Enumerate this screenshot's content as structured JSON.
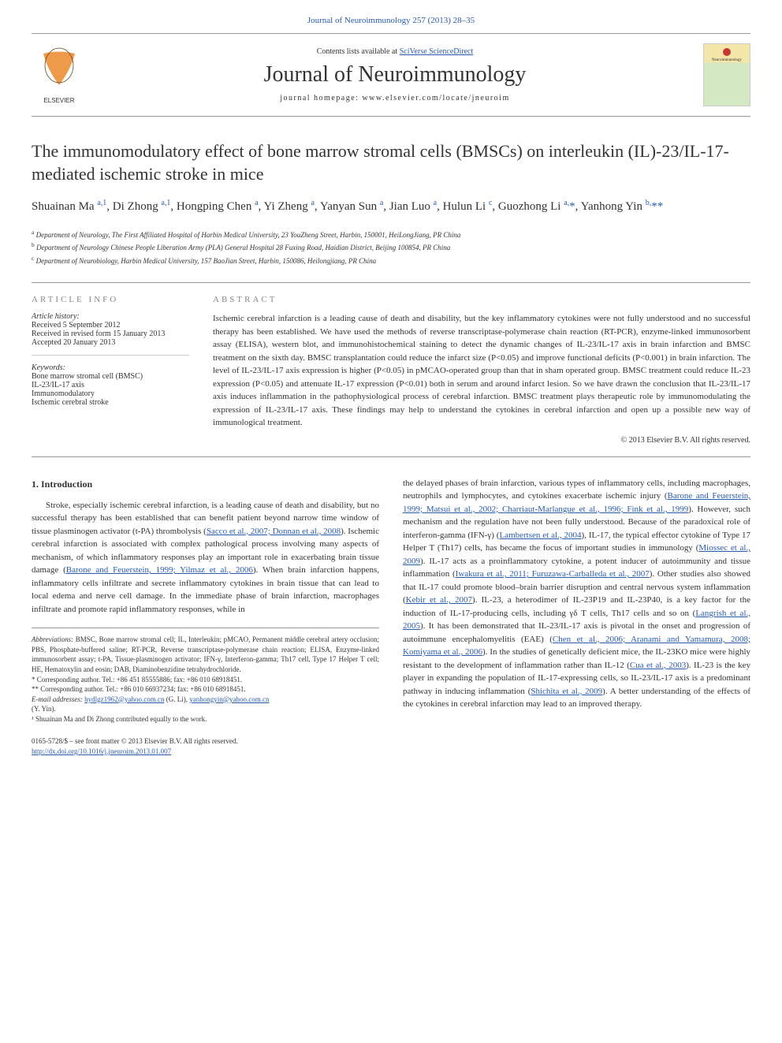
{
  "colors": {
    "link": "#2a5caa",
    "text": "#333333",
    "muted": "#888888",
    "border": "#999999",
    "background": "#ffffff"
  },
  "typography": {
    "base_family": "Georgia, Times New Roman, serif",
    "title_size": 22,
    "journal_name_size": 28,
    "body_size": 11,
    "small_size": 9
  },
  "header": {
    "journal_ref": "Journal of Neuroimmunology 257 (2013) 28–35",
    "contents_prefix": "Contents lists available at ",
    "contents_link": "SciVerse ScienceDirect",
    "journal_name": "Journal of Neuroimmunology",
    "homepage_label": "journal homepage: www.elsevier.com/locate/jneuroim",
    "publisher": "ELSEVIER",
    "cover_text": "Neuroimmunology"
  },
  "title": "The immunomodulatory effect of bone marrow stromal cells (BMSCs) on interleukin (IL)-23/IL-17-mediated ischemic stroke in mice",
  "authors_html": "Shuainan Ma <sup>a,1</sup>, Di Zhong <sup>a,1</sup>, Hongping Chen <sup>a</sup>, Yi Zheng <sup>a</sup>, Yanyan Sun <sup>a</sup>, Jian Luo <sup>a</sup>, Hulun Li <sup>c</sup>, Guozhong Li <sup>a,</sup><span class=\"asterisk\">*</span>, Yanhong Yin <sup>b,</sup><span class=\"asterisk\">**</span>",
  "affiliations": [
    {
      "sup": "a",
      "text": "Department of Neurology, The First Affiliated Hospital of Harbin Medical University, 23 YouZheng Street, Harbin, 150001, HeiLongJiang, PR China"
    },
    {
      "sup": "b",
      "text": "Department of Neurology Chinese People Liberation Army (PLA) General Hospital 28 Fuxing Road, Haidian District, Beijing 100854, PR China"
    },
    {
      "sup": "c",
      "text": "Department of Neurobiology, Harbin Medical University, 157 BaoJian Street, Harbin, 150086, Heilongjiang, PR China"
    }
  ],
  "article_info": {
    "heading": "article info",
    "history_label": "Article history:",
    "received": "Received 5 September 2012",
    "revised": "Received in revised form 15 January 2013",
    "accepted": "Accepted 20 January 2013",
    "keywords_label": "Keywords:",
    "keywords": [
      "Bone marrow stromal cell (BMSC)",
      "IL-23/IL-17 axis",
      "Immunomodulatory",
      "Ischemic cerebral stroke"
    ]
  },
  "abstract": {
    "heading": "abstract",
    "text": "Ischemic cerebral infarction is a leading cause of death and disability, but the key inflammatory cytokines were not fully understood and no successful therapy has been established. We have used the methods of reverse transcriptase-polymerase chain reaction (RT-PCR), enzyme-linked immunosorbent assay (ELISA), western blot, and immunohistochemical staining to detect the dynamic changes of IL-23/IL-17 axis in brain infarction and BMSC treatment on the sixth day. BMSC transplantation could reduce the infarct size (P<0.05) and improve functional deficits (P<0.001) in brain infarction. The level of IL-23/IL-17 axis expression is higher (P<0.05) in pMCAO-operated group than that in sham operated group. BMSC treatment could reduce IL-23 expression (P<0.05) and attenuate IL-17 expression (P<0.01) both in serum and around infarct lesion. So we have drawn the conclusion that IL-23/IL-17 axis induces inflammation in the pathophysiological process of cerebral infarction. BMSC treatment plays therapeutic role by immunomodulating the expression of IL-23/IL-17 axis. These findings may help to understand the cytokines in cerebral infarction and open up a possible new way of immunological treatment.",
    "copyright": "© 2013 Elsevier B.V. All rights reserved."
  },
  "introduction": {
    "heading": "1. Introduction",
    "col1_p1_a": "Stroke, especially ischemic cerebral infarction, is a leading cause of death and disability, but no successful therapy has been established that can benefit patient beyond narrow time window of tissue plasminogen activator (t-PA) thrombolysis (",
    "col1_p1_ref1": "Sacco et al., 2007; Donnan et al., 2008",
    "col1_p1_b": "). Ischemic cerebral infarction is associated with complex pathological process involving many aspects of mechanism, of which inflammatory responses play an important role in exacerbating brain tissue damage (",
    "col1_p1_ref2": "Barone and Feuerstein, 1999; Yilmaz et al., 2006",
    "col1_p1_c": "). When brain infarction happens, inflammatory cells infiltrate and secrete inflammatory cytokines in brain tissue that can lead to local edema and nerve cell damage. In the immediate phase of brain infarction, macrophages infiltrate and promote rapid inflammatory responses, while in",
    "col2_p1_a": "the delayed phases of brain infarction, various types of inflammatory cells, including macrophages, neutrophils and lymphocytes, and cytokines exacerbate ischemic injury (",
    "col2_p1_ref1": "Barone and Feuerstein, 1999; Matsui et al., 2002; Charriaut-Marlangue et al., 1996; Fink et al., 1999",
    "col2_p1_b": "). However, such mechanism and the regulation have not been fully understood. Because of the paradoxical role of interferon-gamma (IFN-γ) (",
    "col2_p1_ref2": "Lambertsen et al., 2004",
    "col2_p1_c": "), IL-17, the typical effector cytokine of Type 17 Helper T (Th17) cells, has became the focus of important studies in immunology (",
    "col2_p1_ref3": "Miossec et al., 2009",
    "col2_p1_d": "). IL-17 acts as a proinflammatory cytokine, a potent inducer of autoimmunity and tissue inflammation (",
    "col2_p1_ref4": "Iwakura et al., 2011; Furuzawa-Carballeda et al., 2007",
    "col2_p1_e": "). Other studies also showed that IL-17 could promote blood–brain barrier disruption and central nervous system inflammation (",
    "col2_p1_ref5": "Kebir et al., 2007",
    "col2_p1_f": "). IL-23, a heterodimer of IL-23P19 and IL-23P40, is a key factor for the induction of IL-17-producing cells, including γδ T cells, Th17 cells and so on (",
    "col2_p1_ref6": "Langrish et al., 2005",
    "col2_p1_g": "). It has been demonstrated that IL-23/IL-17 axis is pivotal in the onset and progression of autoimmune encephalomyelitis (EAE) (",
    "col2_p1_ref7": "Chen et al., 2006; Aranami and Yamamura, 2008; Komiyama et al., 2006",
    "col2_p1_h": "). In the studies of genetically deficient mice, the IL-23KO mice were highly resistant to the development of inflammation rather than IL-12 (",
    "col2_p1_ref8": "Cua et al., 2003",
    "col2_p1_i": "). IL-23 is the key player in expanding the population of IL-17-expressing cells, so IL-23/IL-17 axis is a predominant pathway in inducing inflammation (",
    "col2_p1_ref9": "Shichita et al., 2009",
    "col2_p1_j": "). A better understanding of the effects of the cytokines in cerebral infarction may lead to an improved therapy."
  },
  "footer": {
    "abbrev_label": "Abbreviations:",
    "abbrev_text": " BMSC, Bone marrow stromal cell; IL, Interleukin; pMCAO, Permanent middle cerebral artery occlusion; PBS, Phosphate-buffered saline; RT-PCR, Reverse transcriptase-polymerase chain reaction; ELISA, Enzyme-linked immunosorbent assay; t-PA, Tissue-plasminogen activator; IFN-γ, Interferon-gamma; Th17 cell, Type 17 Helper T cell; HE, Hematoxylin and eosin; DAB, Diaminobenzidine tetrahydrochloride.",
    "corr1": "* Corresponding author. Tel.: +86 451 85555886; fax: +86 010 68918451.",
    "corr2": "** Corresponding author. Tel.: +86 010 66937234; fax: +86 010 68918451.",
    "email_label": "E-mail addresses:",
    "email1": "hydlgz1962@yahoo.com.cn",
    "email1_name": " (G. Li), ",
    "email2": "yanhongyin@yahoo.com.cn",
    "email2_name": " (Y. Yin).",
    "equal": "¹ Shuainan Ma and Di Zhong contributed equally to the work.",
    "copyright_line": "0165-5728/$ – see front matter © 2013 Elsevier B.V. All rights reserved.",
    "doi": "http://dx.doi.org/10.1016/j.jneuroim.2013.01.007"
  }
}
